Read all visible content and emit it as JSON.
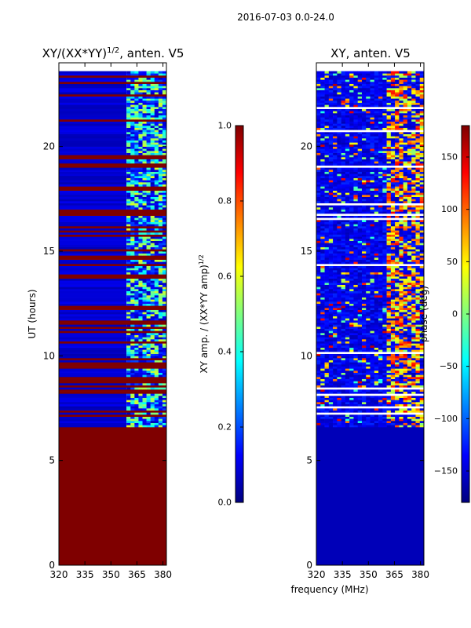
{
  "suptitle": "2016-07-03 0.0-24.0",
  "shared_xlabel": "frequency (MHz)",
  "colors": {
    "jet": [
      "#00007f",
      "#0000ff",
      "#007fff",
      "#00ffff",
      "#7fff7f",
      "#ffff00",
      "#ff7f00",
      "#ff0000",
      "#7f0000"
    ],
    "white_line": "#ffffff"
  },
  "chart_data": [
    {
      "type": "heatmap",
      "title": "XY/(XX*YY)",
      "title_exponent": "1/2",
      "title_suffix": ", anten. V5",
      "xlabel": "",
      "ylabel": "UT (hours)",
      "xlim": [
        320,
        382
      ],
      "ylim": [
        0,
        24
      ],
      "xticks": [
        320,
        335,
        350,
        365,
        380
      ],
      "yticks": [
        0,
        5,
        10,
        15,
        20
      ],
      "xtick_labels": [
        "320",
        "335",
        "350",
        "365",
        "380"
      ],
      "ytick_labels": [
        "0",
        "5",
        "10",
        "15",
        "20"
      ],
      "colorbar": {
        "label": "XY amp. / (XX*YY amp)",
        "label_exponent": "1/2",
        "range": [
          0.0,
          1.0
        ],
        "ticks": [
          0.0,
          0.2,
          0.4,
          0.6,
          0.8,
          1.0
        ],
        "tick_labels": [
          "0.0",
          "0.2",
          "0.4",
          "0.6",
          "0.8",
          "1.0"
        ]
      },
      "description": {
        "no_data_value": 1.0,
        "no_data_before_ut": 6.6,
        "background_value": 0.05,
        "active_band_mhz": [
          359,
          382
        ],
        "active_band_value": 0.45
      }
    },
    {
      "type": "heatmap",
      "title": "XY, anten. V5",
      "xlabel": "frequency (MHz)",
      "ylabel": "",
      "xlim": [
        320,
        382
      ],
      "ylim": [
        0,
        24
      ],
      "xticks": [
        320,
        335,
        350,
        365,
        380
      ],
      "yticks": [
        0,
        5,
        10,
        15,
        20
      ],
      "xtick_labels": [
        "320",
        "335",
        "350",
        "365",
        "380"
      ],
      "ytick_labels": [
        "0",
        "5",
        "10",
        "15",
        "20"
      ],
      "colorbar": {
        "label": "phase (deg)",
        "range": [
          -180,
          180
        ],
        "ticks": [
          -150,
          -100,
          -50,
          0,
          50,
          100,
          150
        ],
        "tick_labels": [
          "−150",
          "−100",
          "−50",
          "0",
          "50",
          "100",
          "150"
        ]
      },
      "description": {
        "no_data_before_ut": 6.6,
        "background_value": -160,
        "active_band_mhz": [
          359,
          382
        ],
        "active_band_value": 60
      }
    }
  ]
}
